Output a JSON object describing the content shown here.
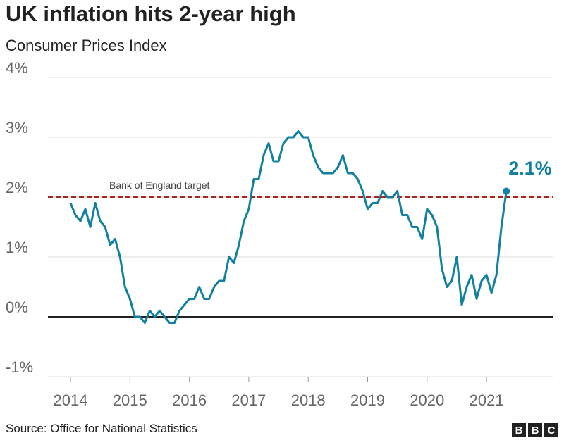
{
  "title": "UK inflation hits 2-year high",
  "subtitle": "Consumer Prices Index",
  "source": "Source: Office for National Statistics",
  "logo": "BBC",
  "chart_data": {
    "type": "line",
    "title": "UK inflation hits 2-year high",
    "subtitle": "Consumer Prices Index",
    "xlabel": "",
    "ylabel": "",
    "ylim": [
      -1,
      4
    ],
    "y_ticks": [
      "4%",
      "3%",
      "2%",
      "1%",
      "0%",
      "-1%"
    ],
    "y_tick_values": [
      4,
      3,
      2,
      1,
      0,
      -1
    ],
    "x_ticks": [
      "2014",
      "2015",
      "2016",
      "2017",
      "2018",
      "2019",
      "2020",
      "2021"
    ],
    "grid": true,
    "line_color": "#1380a1",
    "reference_line": {
      "label": "Bank of England target",
      "value": 2,
      "color": "#a5251c"
    },
    "end_label": "2.1%",
    "series": [
      {
        "start": "2014-01",
        "frequency": "monthly",
        "values": [
          1.9,
          1.7,
          1.6,
          1.8,
          1.5,
          1.9,
          1.6,
          1.5,
          1.2,
          1.3,
          1.0,
          0.5,
          0.3,
          0.0,
          0.0,
          -0.1,
          0.1,
          0.0,
          0.1,
          0.0,
          -0.1,
          -0.1,
          0.1,
          0.2,
          0.3,
          0.3,
          0.5,
          0.3,
          0.3,
          0.5,
          0.6,
          0.6,
          1.0,
          0.9,
          1.2,
          1.6,
          1.8,
          2.3,
          2.3,
          2.7,
          2.9,
          2.6,
          2.6,
          2.9,
          3.0,
          3.0,
          3.1,
          3.0,
          3.0,
          2.7,
          2.5,
          2.4,
          2.4,
          2.4,
          2.5,
          2.7,
          2.4,
          2.4,
          2.3,
          2.1,
          1.8,
          1.9,
          1.9,
          2.1,
          2.0,
          2.0,
          2.1,
          1.7,
          1.7,
          1.5,
          1.5,
          1.3,
          1.8,
          1.7,
          1.5,
          0.8,
          0.5,
          0.6,
          1.0,
          0.2,
          0.5,
          0.7,
          0.3,
          0.6,
          0.7,
          0.4,
          0.7,
          1.5,
          2.1
        ]
      }
    ]
  }
}
